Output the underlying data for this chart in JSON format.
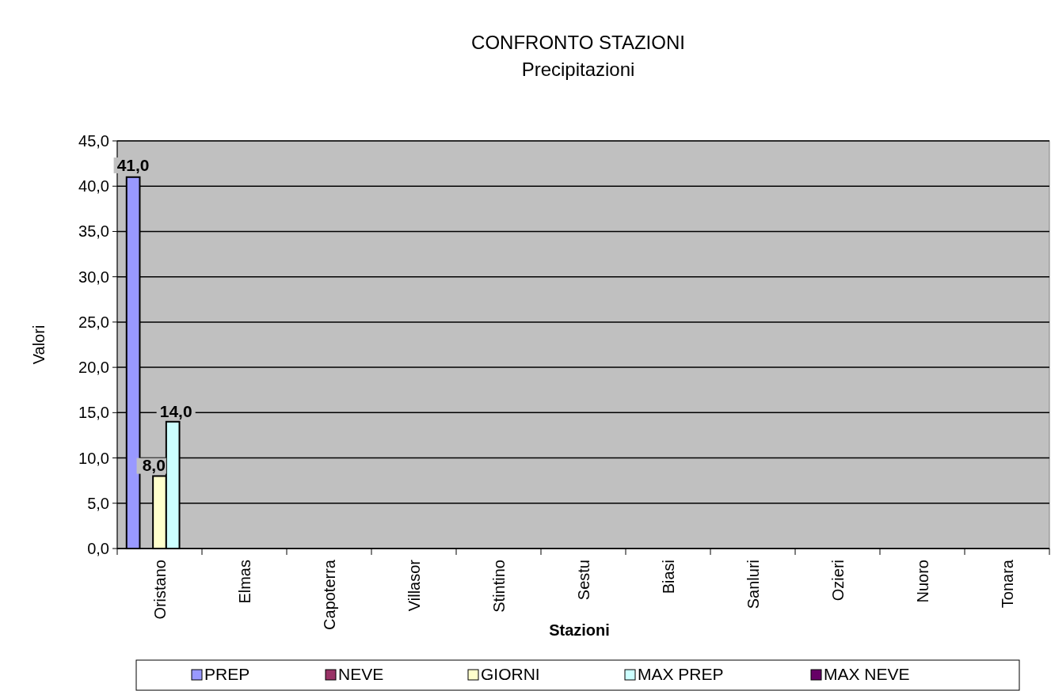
{
  "chart_data": {
    "type": "bar",
    "title": "CONFRONTO STAZIONI",
    "subtitle": "Precipitazioni",
    "xlabel": "Stazioni",
    "ylabel": "Valori",
    "categories": [
      "Oristano",
      "Elmas",
      "Capoterra",
      "Villasor",
      "Stintino",
      "Sestu",
      "Biasi",
      "Sanluri",
      "Ozieri",
      "Nuoro",
      "Tonara"
    ],
    "series": [
      {
        "name": "PREP",
        "color": "#9999ff",
        "values": [
          41,
          null,
          null,
          null,
          null,
          null,
          null,
          null,
          null,
          null,
          null
        ],
        "value_labels": [
          "41,0",
          null,
          null,
          null,
          null,
          null,
          null,
          null,
          null,
          null,
          null
        ]
      },
      {
        "name": "NEVE",
        "color": "#993366",
        "values": [
          null,
          null,
          null,
          null,
          null,
          null,
          null,
          null,
          null,
          null,
          null
        ]
      },
      {
        "name": "GIORNI",
        "color": "#ffffcc",
        "values": [
          8,
          null,
          null,
          null,
          null,
          null,
          null,
          null,
          null,
          null,
          null
        ],
        "value_labels": [
          "8,0",
          null,
          null,
          null,
          null,
          null,
          null,
          null,
          null,
          null,
          null
        ]
      },
      {
        "name": "MAX PREP",
        "color": "#ccffff",
        "values": [
          14,
          null,
          null,
          null,
          null,
          null,
          null,
          null,
          null,
          null,
          null
        ],
        "value_labels": [
          "14,0",
          null,
          null,
          null,
          null,
          null,
          null,
          null,
          null,
          null,
          null
        ]
      },
      {
        "name": "MAX NEVE",
        "color": "#660066",
        "values": [
          null,
          null,
          null,
          null,
          null,
          null,
          null,
          null,
          null,
          null,
          null
        ]
      }
    ],
    "ylim": [
      0,
      45
    ],
    "yticks": [
      {
        "value": 0,
        "label": "0,0"
      },
      {
        "value": 5,
        "label": "5,0"
      },
      {
        "value": 10,
        "label": "10,0"
      },
      {
        "value": 15,
        "label": "15,0"
      },
      {
        "value": 20,
        "label": "20,0"
      },
      {
        "value": 25,
        "label": "25,0"
      },
      {
        "value": 30,
        "label": "30,0"
      },
      {
        "value": 35,
        "label": "35,0"
      },
      {
        "value": 40,
        "label": "40,0"
      },
      {
        "value": 45,
        "label": "45,0"
      }
    ],
    "grid": "y",
    "legend": "bottom"
  }
}
